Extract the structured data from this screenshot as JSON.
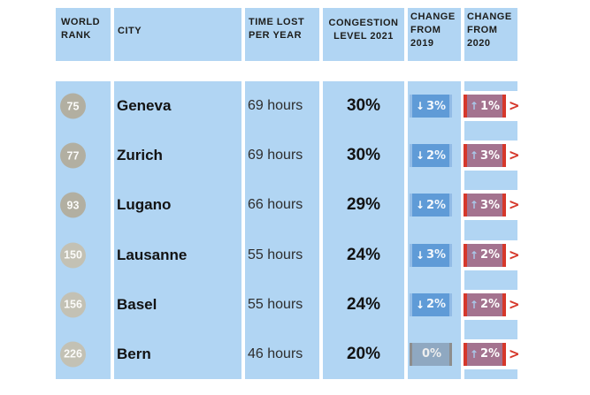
{
  "colors": {
    "table_blue": "#b1d5f3",
    "badge_down_fill": "#5f9bd7",
    "badge_down_edge": "#93bce6",
    "badge_neutral_fill": "#8fa8c1",
    "badge_neutral_edge": "#8d8d8d",
    "badge_up_fill": "#a4738f",
    "accent_red": "#d6382b",
    "up_arrow_blue": "#a9c9ea",
    "rank_circle_dark": "#b2afa1",
    "rank_circle_light": "#c3c1b4"
  },
  "header": {
    "world_rank": "WORLD RANK",
    "city": "CITY",
    "time_lost": "TIME LOST PER YEAR",
    "congestion": "CONGESTION LEVEL 2021",
    "change_2019": "CHANGE FROM 2019",
    "change_2020": "CHANGE FROM 2020"
  },
  "icons": {
    "down_arrow": "↓",
    "up_arrow": "↑",
    "chevron_right": ">"
  },
  "rows": [
    {
      "rank": "75",
      "city": "Geneva",
      "time_lost": "69 hours",
      "congestion_level": "30%",
      "change_2019": {
        "arrow": "↓",
        "value": "3%",
        "type": "down"
      },
      "change_2020": {
        "arrow": "↑",
        "value": "1%",
        "type": "up"
      },
      "circle_tone": "dark"
    },
    {
      "rank": "77",
      "city": "Zurich",
      "time_lost": "69 hours",
      "congestion_level": "30%",
      "change_2019": {
        "arrow": "↓",
        "value": "2%",
        "type": "down"
      },
      "change_2020": {
        "arrow": "↑",
        "value": "3%",
        "type": "up"
      },
      "circle_tone": "dark"
    },
    {
      "rank": "93",
      "city": "Lugano",
      "time_lost": "66 hours",
      "congestion_level": "29%",
      "change_2019": {
        "arrow": "↓",
        "value": "2%",
        "type": "down"
      },
      "change_2020": {
        "arrow": "↑",
        "value": "3%",
        "type": "up"
      },
      "circle_tone": "dark"
    },
    {
      "rank": "150",
      "city": "Lausanne",
      "time_lost": "55 hours",
      "congestion_level": "24%",
      "change_2019": {
        "arrow": "↓",
        "value": "3%",
        "type": "down"
      },
      "change_2020": {
        "arrow": "↑",
        "value": "2%",
        "type": "up"
      },
      "circle_tone": "light"
    },
    {
      "rank": "156",
      "city": "Basel",
      "time_lost": "55 hours",
      "congestion_level": "24%",
      "change_2019": {
        "arrow": "↓",
        "value": "2%",
        "type": "down"
      },
      "change_2020": {
        "arrow": "↑",
        "value": "2%",
        "type": "up"
      },
      "circle_tone": "light"
    },
    {
      "rank": "226",
      "city": "Bern",
      "time_lost": "46 hours",
      "congestion_level": "20%",
      "change_2019": {
        "arrow": "",
        "value": "0%",
        "type": "neutral"
      },
      "change_2020": {
        "arrow": "↑",
        "value": "2%",
        "type": "up"
      },
      "circle_tone": "light"
    }
  ],
  "chart_data": {
    "type": "table",
    "columns": [
      "WORLD RANK",
      "CITY",
      "TIME LOST PER YEAR",
      "CONGESTION LEVEL 2021",
      "CHANGE FROM 2019",
      "CHANGE FROM 2020"
    ],
    "rows": [
      [
        "75",
        "Geneva",
        "69 hours",
        "30%",
        "-3%",
        "+1%"
      ],
      [
        "77",
        "Zurich",
        "69 hours",
        "30%",
        "-2%",
        "+3%"
      ],
      [
        "93",
        "Lugano",
        "66 hours",
        "29%",
        "-2%",
        "+3%"
      ],
      [
        "150",
        "Lausanne",
        "55 hours",
        "24%",
        "-3%",
        "+2%"
      ],
      [
        "156",
        "Basel",
        "55 hours",
        "24%",
        "-2%",
        "+2%"
      ],
      [
        "226",
        "Bern",
        "46 hours",
        "20%",
        "0%",
        "+2%"
      ]
    ],
    "legend_position": "none",
    "grid": false
  }
}
